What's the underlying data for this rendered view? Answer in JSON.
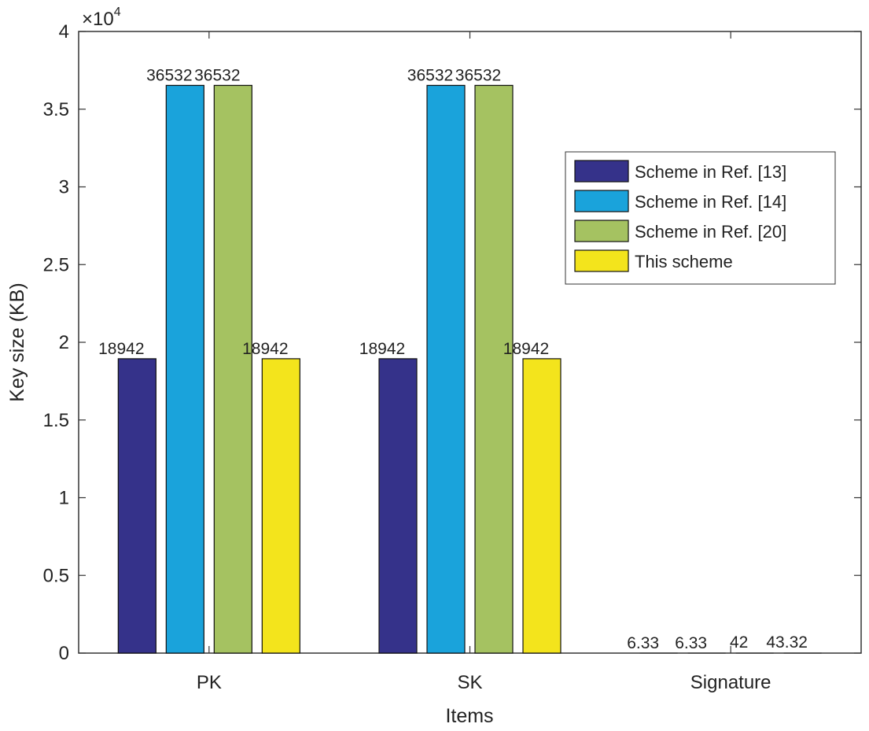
{
  "chart_data": {
    "type": "bar",
    "title": "",
    "xlabel": "Items",
    "ylabel": "Key size (KB)",
    "categories": [
      "PK",
      "SK",
      "Signature"
    ],
    "ylim": [
      0,
      40000
    ],
    "yticks": [
      0,
      5000,
      10000,
      15000,
      20000,
      25000,
      30000,
      35000,
      40000
    ],
    "ytick_labels": [
      "0",
      "0.5",
      "1",
      "1.5",
      "2",
      "2.5",
      "3",
      "3.5",
      "4"
    ],
    "y_multiplier_base": "×10",
    "y_multiplier_exp": "4",
    "grid": false,
    "legend_position": "top-right",
    "series": [
      {
        "name": "Scheme in Ref. [13]",
        "color": "#35328a",
        "values": [
          18942,
          18942,
          6.33
        ],
        "labels": [
          "18942",
          "18942",
          "6.33"
        ]
      },
      {
        "name": "Scheme in Ref. [14]",
        "color": "#1aa3db",
        "values": [
          36532,
          36532,
          6.33
        ],
        "labels": [
          "36532",
          "36532",
          "6.33"
        ]
      },
      {
        "name": "Scheme in Ref. [20]",
        "color": "#a5c261",
        "values": [
          36532,
          36532,
          42
        ],
        "labels": [
          "36532",
          "36532",
          "42"
        ]
      },
      {
        "name": "This scheme",
        "color": "#f3e41c",
        "values": [
          18942,
          18942,
          43.32
        ],
        "labels": [
          "18942",
          "18942",
          "43.32"
        ]
      }
    ]
  }
}
